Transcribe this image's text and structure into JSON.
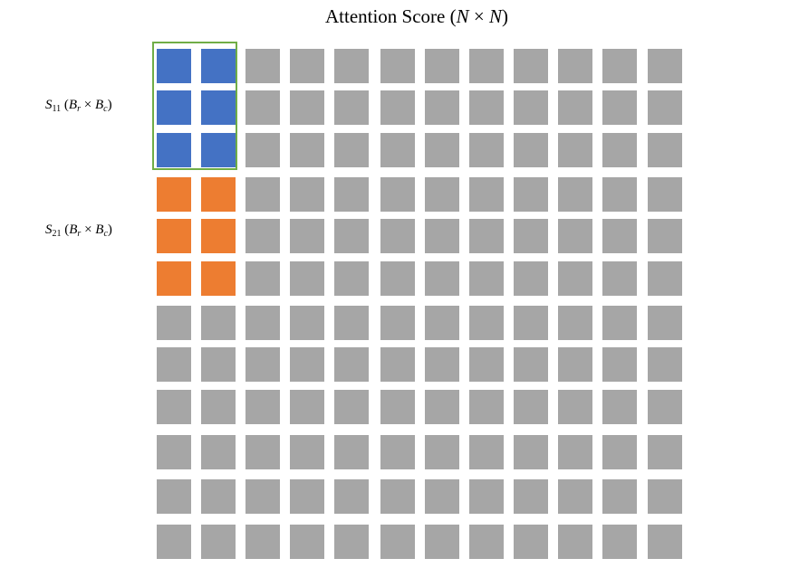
{
  "title": {
    "prefix": "Attention Score (",
    "n1": "N",
    "times": " × ",
    "n2": "N",
    "suffix": ")"
  },
  "labels": [
    {
      "s": "S",
      "sub": "11",
      "open": " (",
      "br": "B",
      "br_sub": "r",
      "times": " × ",
      "bc": "B",
      "bc_sub": "c",
      "close": ")"
    },
    {
      "s": "S",
      "sub": "21",
      "open": " (",
      "br": "B",
      "br_sub": "r",
      "times": " × ",
      "bc": "B",
      "bc_sub": "c",
      "close": ")"
    }
  ],
  "grid": {
    "rows": 12,
    "cols": 12,
    "highlight_block": {
      "rows": [
        0,
        2
      ],
      "cols": [
        0,
        1
      ],
      "color": "#4472c4"
    },
    "second_block": {
      "rows": [
        3,
        5
      ],
      "cols": [
        0,
        1
      ],
      "color": "#ed7d31"
    },
    "default_color": "#a6a6a6",
    "tile_border_color": "#70ad47"
  }
}
